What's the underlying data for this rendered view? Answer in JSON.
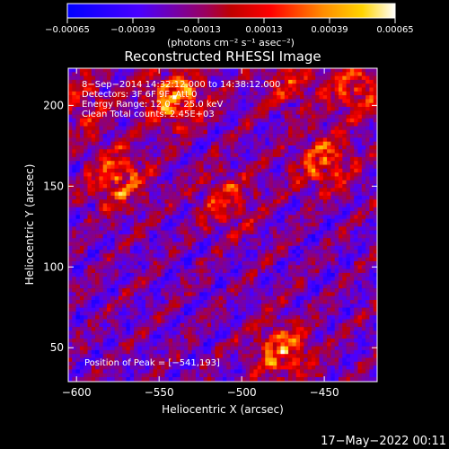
{
  "chart_data": {
    "type": "heatmap",
    "title": "Reconstructed RHESSI Image",
    "xlabel": "Heliocentric X (arcsec)",
    "ylabel": "Heliocentric Y (arcsec)",
    "xlim": [
      -605,
      -418
    ],
    "ylim": [
      29,
      223
    ],
    "x_ticks": [
      -600,
      -550,
      -500,
      -450
    ],
    "x_tick_labels": [
      "−600",
      "−550",
      "−500",
      "−450"
    ],
    "y_ticks": [
      50,
      100,
      150,
      200
    ],
    "y_tick_labels": [
      "50",
      "100",
      "150",
      "200"
    ],
    "colorbar": {
      "min": -0.00065,
      "max": 0.00065,
      "ticks": [
        -0.00065,
        -0.00039,
        -0.00013,
        0.00013,
        0.00039,
        0.00065
      ],
      "tick_labels": [
        "−0.00065",
        "−0.00039",
        "−0.00013",
        "0.00013",
        "0.00039",
        "0.00065"
      ],
      "units_label": "(photons cm⁻² s⁻¹ asec⁻²)"
    },
    "annotations": {
      "time_range": "8−Sep−2014 14:32:12.000 to 14:38:12.000",
      "detectors": "Detectors: 3F 6F 9F, Att 0",
      "energy_range": "Energy Range: 12.0 − 25.0 keV",
      "method": "Clean    Total counts: 2.45E+03",
      "peak": "Position of Peak = [−541,193]"
    },
    "peak_position": [
      -541,
      193
    ],
    "bright_sources": [
      {
        "x": -540,
        "y": 205,
        "level": 1.0
      },
      {
        "x": -575,
        "y": 155,
        "level": 0.8
      },
      {
        "x": -475,
        "y": 48,
        "level": 0.85
      },
      {
        "x": -450,
        "y": 165,
        "level": 0.75
      },
      {
        "x": -510,
        "y": 140,
        "level": 0.55
      },
      {
        "x": -430,
        "y": 210,
        "level": 0.7
      },
      {
        "x": -470,
        "y": 215,
        "level": 0.5
      },
      {
        "x": -595,
        "y": 200,
        "level": 0.45
      }
    ]
  },
  "footer": {
    "timestamp": "17−May−2022 00:11"
  }
}
